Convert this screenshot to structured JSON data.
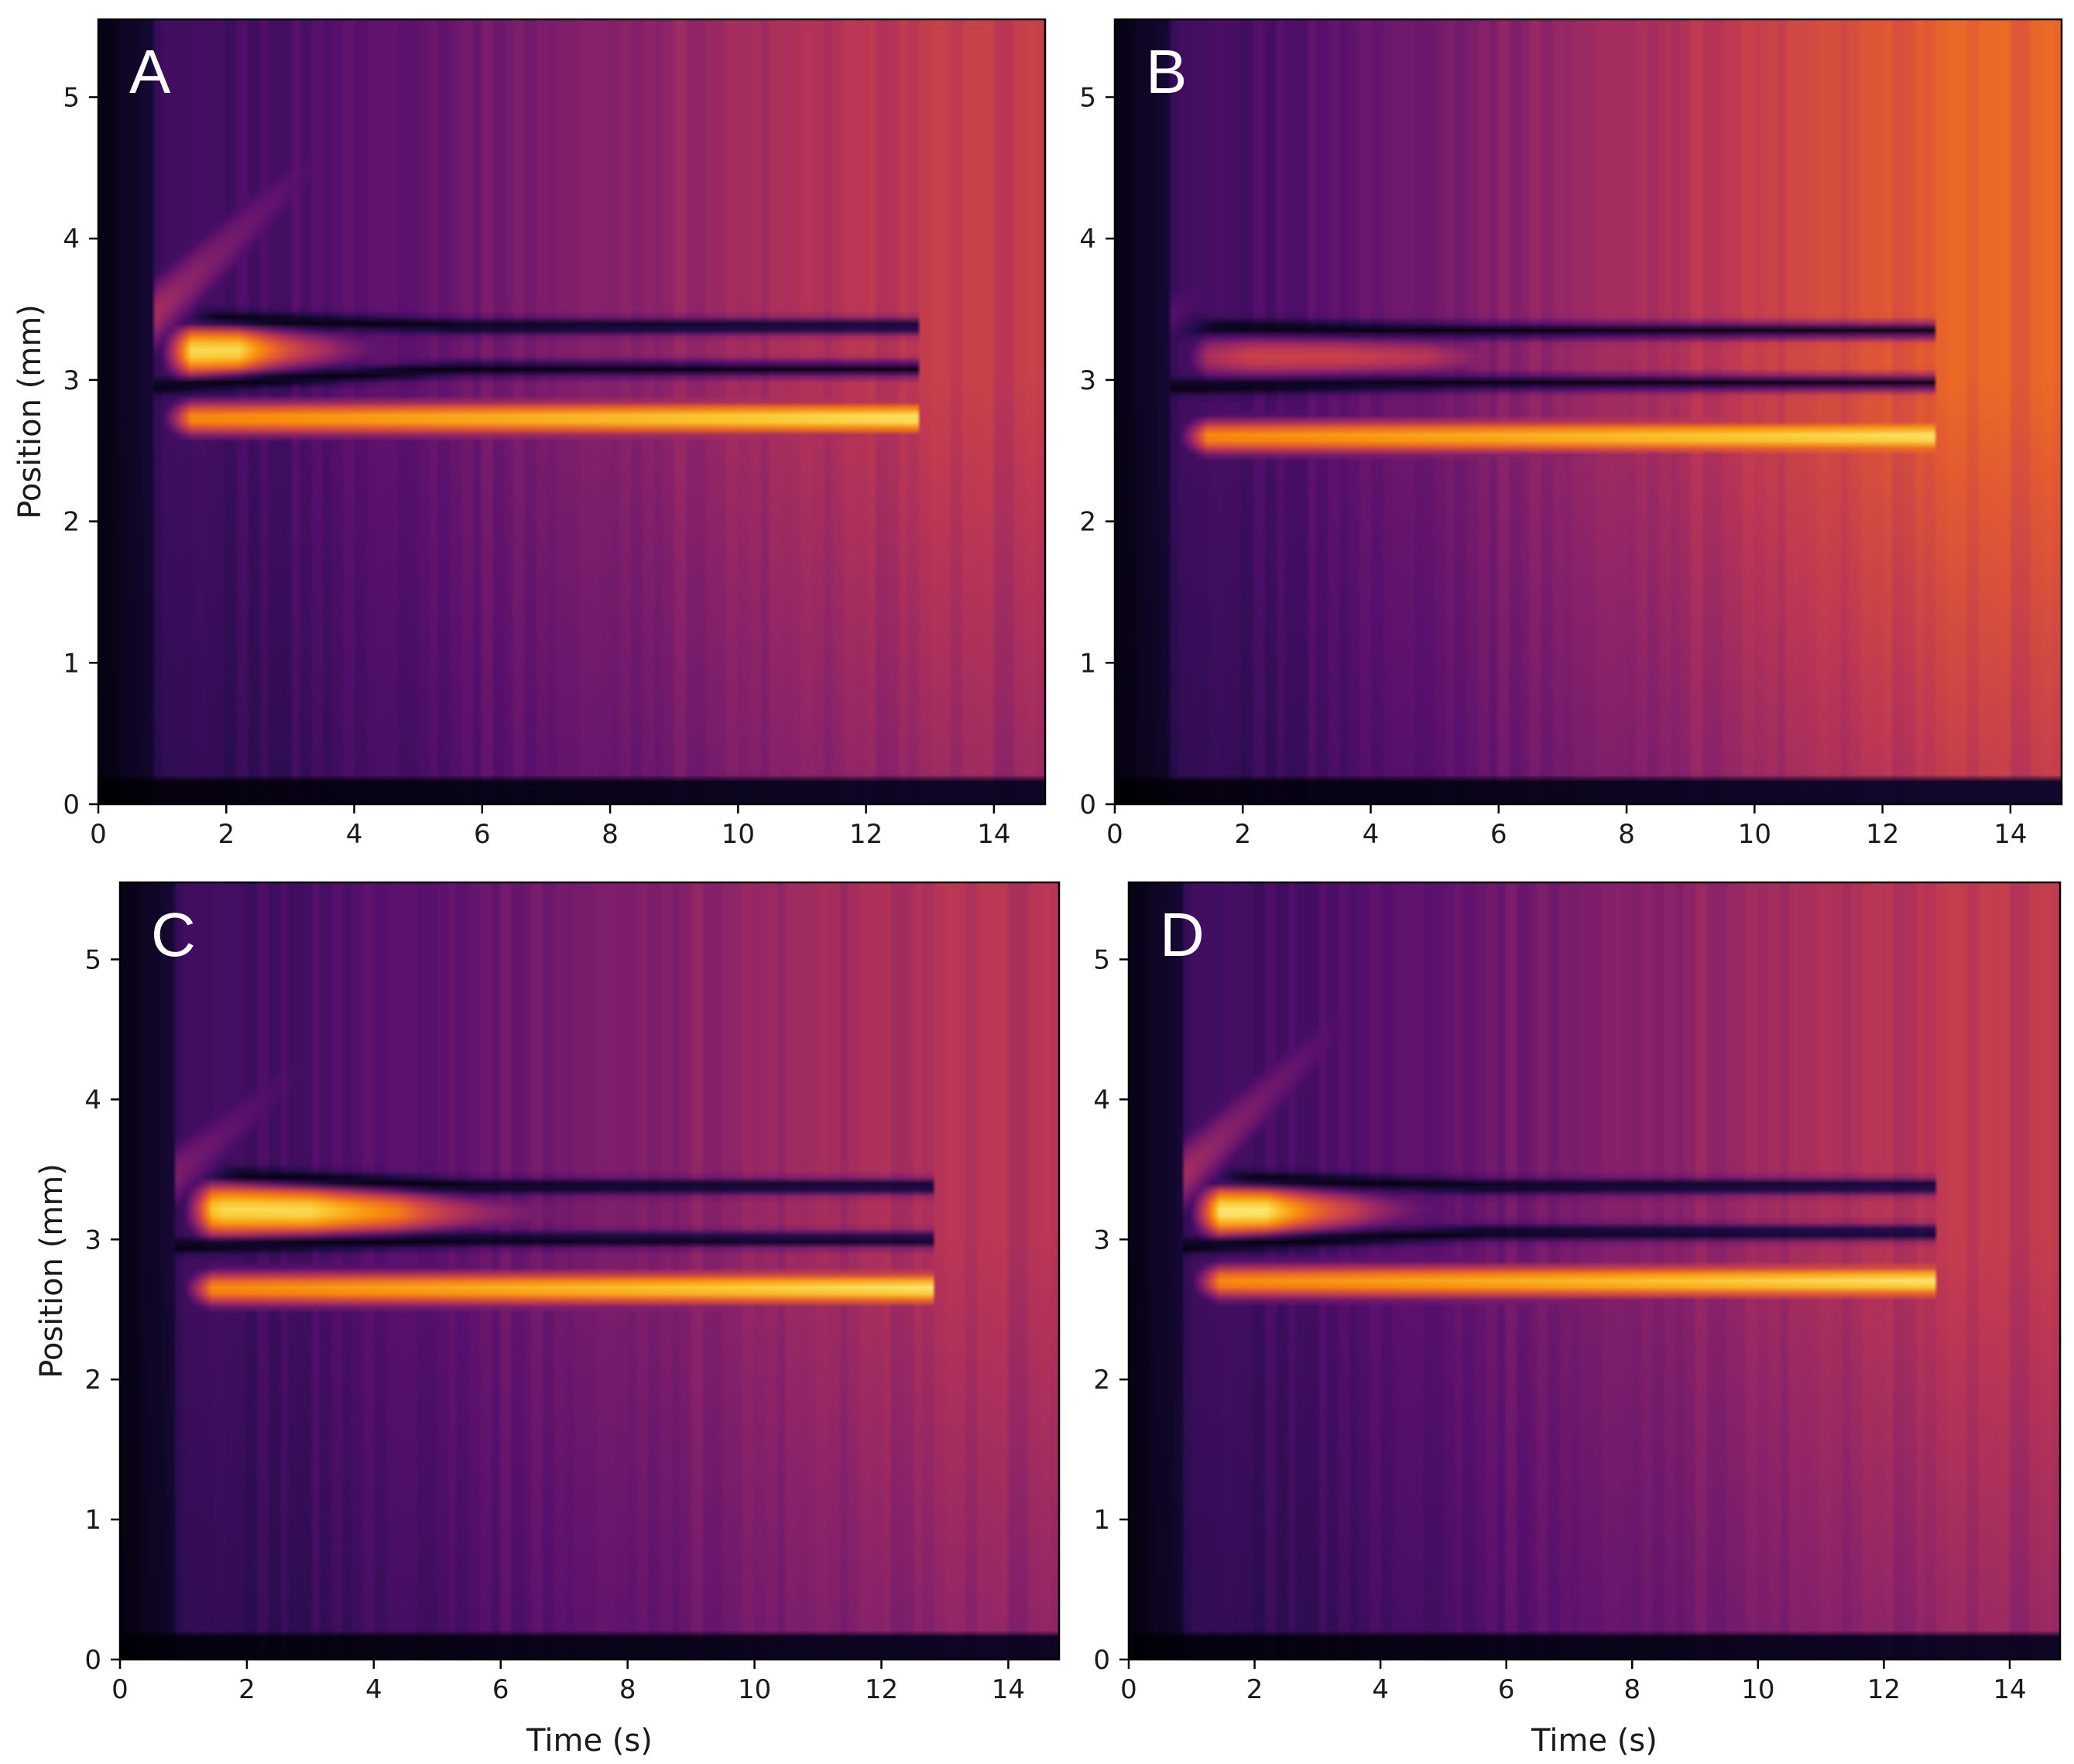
{
  "chart_data": [
    {
      "type": "heatmap",
      "panel": "A",
      "xlabel": "",
      "ylabel": "Position (mm)",
      "xlim": [
        0,
        14.8
      ],
      "ylim": [
        0,
        5.55
      ],
      "xticks": [
        0,
        2,
        4,
        6,
        8,
        10,
        12,
        14
      ],
      "yticks": [
        0,
        1,
        2,
        3,
        4,
        5
      ],
      "colormap": "inferno",
      "upper_band": {
        "start_center": 3.2,
        "end_center": 3.2,
        "start_upper": 3.45,
        "end_upper": 3.38,
        "start_lower": 2.95,
        "end_lower": 3.08,
        "hot_t": 2.2,
        "hot_decay": 1.2,
        "intensity": 0.92,
        "fade_mid": 0.25
      },
      "lower_band": {
        "center": 2.78,
        "intensity": 0.95
      },
      "band_end": 12.8,
      "diagonal": {
        "present": true,
        "slope": 0.43,
        "intensity": 0.45
      },
      "background_gain": 0.62
    },
    {
      "type": "heatmap",
      "panel": "B",
      "xlabel": "",
      "ylabel": "",
      "xlim": [
        0,
        14.8
      ],
      "ylim": [
        0,
        5.55
      ],
      "xticks": [
        0,
        2,
        4,
        6,
        8,
        10,
        12,
        14
      ],
      "yticks": [
        0,
        1,
        2,
        3,
        4,
        5
      ],
      "colormap": "inferno",
      "upper_band": {
        "start_center": 3.2,
        "end_center": 3.2,
        "start_upper": 3.38,
        "end_upper": 3.35,
        "start_lower": 2.95,
        "end_lower": 2.98,
        "hot_t": 3.5,
        "hot_decay": 6.0,
        "intensity": 0.55,
        "fade_mid": 0.55
      },
      "lower_band": {
        "center": 2.65,
        "intensity": 0.95
      },
      "band_end": 12.8,
      "diagonal": {
        "present": true,
        "slope": 0.35,
        "intensity": 0.25
      },
      "background_gain": 0.85
    },
    {
      "type": "heatmap",
      "panel": "C",
      "xlabel": "Time (s)",
      "ylabel": "Position (mm)",
      "xlim": [
        0,
        14.8
      ],
      "ylim": [
        0,
        5.55
      ],
      "xticks": [
        0,
        2,
        4,
        6,
        8,
        10,
        12,
        14
      ],
      "yticks": [
        0,
        1,
        2,
        3,
        4,
        5
      ],
      "colormap": "inferno",
      "upper_band": {
        "start_center": 3.2,
        "end_center": 3.2,
        "start_upper": 3.48,
        "end_upper": 3.38,
        "start_lower": 2.95,
        "end_lower": 3.0,
        "hot_t": 3.0,
        "hot_decay": 3.5,
        "intensity": 0.92,
        "fade_mid": 0.35
      },
      "lower_band": {
        "center": 2.7,
        "intensity": 0.95
      },
      "band_end": 12.8,
      "diagonal": {
        "present": true,
        "slope": 0.38,
        "intensity": 0.35
      },
      "background_gain": 0.55
    },
    {
      "type": "heatmap",
      "panel": "D",
      "xlabel": "Time (s)",
      "ylabel": "",
      "xlim": [
        0,
        14.8
      ],
      "ylim": [
        0,
        5.55
      ],
      "xticks": [
        0,
        2,
        4,
        6,
        8,
        10,
        12,
        14
      ],
      "yticks": [
        0,
        1,
        2,
        3,
        4,
        5
      ],
      "colormap": "inferno",
      "upper_band": {
        "start_center": 3.2,
        "end_center": 3.2,
        "start_upper": 3.45,
        "end_upper": 3.38,
        "start_lower": 2.95,
        "end_lower": 3.05,
        "hot_t": 2.2,
        "hot_decay": 1.6,
        "intensity": 0.95,
        "fade_mid": 0.25
      },
      "lower_band": {
        "center": 2.75,
        "intensity": 0.95
      },
      "band_end": 12.8,
      "diagonal": {
        "present": true,
        "slope": 0.43,
        "intensity": 0.45
      },
      "background_gain": 0.6
    }
  ]
}
